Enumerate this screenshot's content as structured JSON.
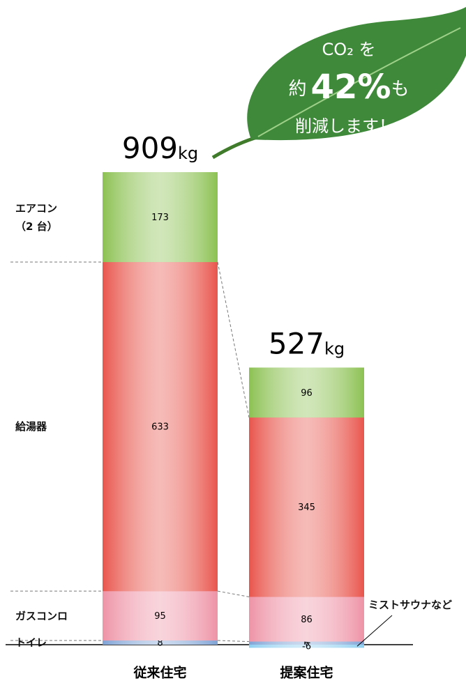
{
  "chart_data": {
    "type": "stacked_bar",
    "categories": [
      "従来住宅",
      "提案住宅"
    ],
    "totals": [
      909,
      527
    ],
    "total_unit": "kg",
    "series": [
      {
        "name": "トイレ",
        "color": "#7fa3d6",
        "values": [
          8,
          6
        ]
      },
      {
        "name": "ガスコンロ",
        "color": "#ee93a6",
        "values": [
          95,
          86
        ]
      },
      {
        "name": "給湯器",
        "color": "#e8554c",
        "values": [
          633,
          345
        ]
      },
      {
        "name": "エアコン\n（2 台）",
        "color": "#8cc152",
        "values": [
          173,
          96
        ]
      },
      {
        "name": "ミストサウナなど",
        "color": "#8ecff0",
        "values": [
          null,
          -6
        ]
      }
    ],
    "callout": {
      "line1": "CO₂ を",
      "prefix": "約",
      "highlight": "42%",
      "suffix": "も",
      "line3": "削減します！"
    }
  }
}
